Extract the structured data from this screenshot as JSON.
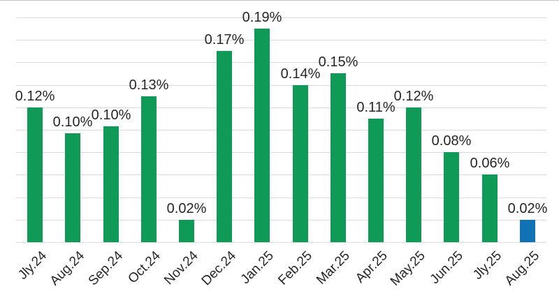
{
  "chart_data": {
    "type": "bar",
    "title": "",
    "xlabel": "",
    "ylabel": "",
    "categories": [
      "Jly.24",
      "Aug.24",
      "Sep.24",
      "Oct.24",
      "Nov.24",
      "Dec.24",
      "Jan.25",
      "Feb.25",
      "Mar.25",
      "Apr.25",
      "May.25",
      "Jun.25",
      "Jly.25",
      "Aug.25"
    ],
    "values": [
      0.12,
      0.097,
      0.103,
      0.13,
      0.02,
      0.17,
      0.19,
      0.14,
      0.15,
      0.11,
      0.12,
      0.08,
      0.06,
      0.02
    ],
    "point_labels": [
      "0.12%",
      "0.10%",
      "0.10%",
      "0.13%",
      "0.02%",
      "0.17%",
      "0.19%",
      "0.14%",
      "0.15%",
      "0.11%",
      "0.12%",
      "0.08%",
      "0.06%",
      "0.02%"
    ],
    "ylim": [
      0,
      0.2
    ],
    "grid_step": 0.02,
    "grid": true,
    "legend_position": "none",
    "bar_color": "#0f9a57",
    "highlight_color": "#1273b4",
    "highlight_index": 13,
    "gridline_color": "#d9d9d9",
    "label_color": "#262626"
  }
}
